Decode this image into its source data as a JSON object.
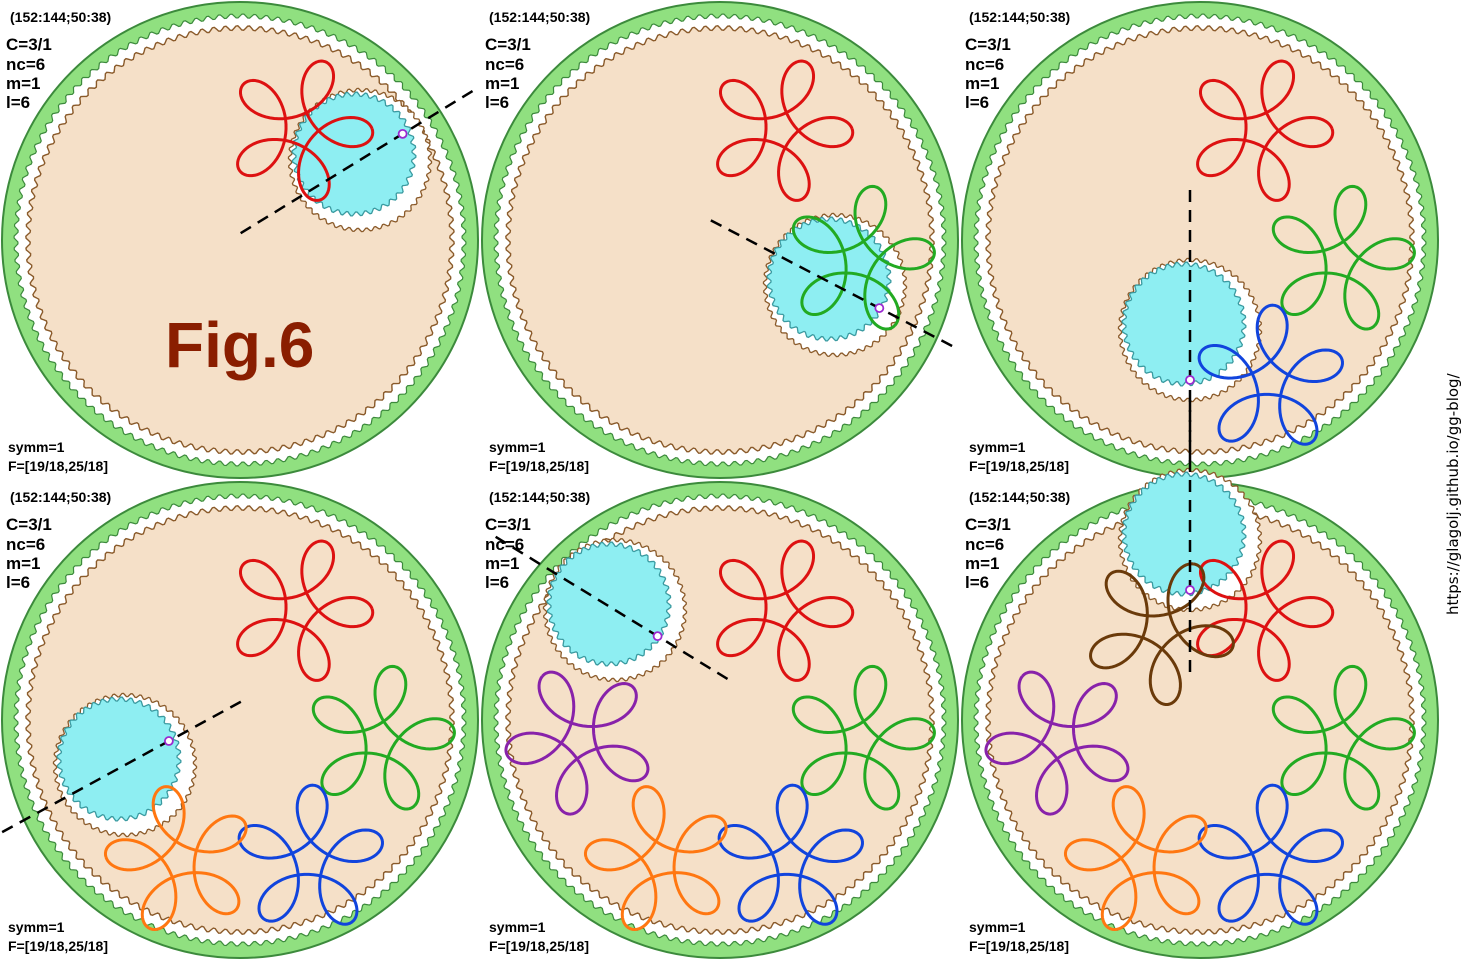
{
  "figure": {
    "title": "Fig.6",
    "url": "https://glagolj.github.io/gg-blog/"
  },
  "panel_text": {
    "header": "(152:144;50:38)",
    "params": [
      "C=3/1",
      "nc=6",
      "m=1",
      "l=6"
    ],
    "symm": "symm=1",
    "ratio": "F=[19/18,25/18]"
  },
  "colors": {
    "ring": "#90e080",
    "ring_edge": "#3c8a3c",
    "disc": "#f5e0c8",
    "gear_edge": "#8a5a2a",
    "small_gear": "#8eeef2",
    "small_gear_edge": "#3a9aa0",
    "fig_text": "#8a1e00"
  },
  "curve_colors": [
    "#dd1111",
    "#22aa22",
    "#1144dd",
    "#ff7711",
    "#8822aa",
    "#6a3a0a"
  ],
  "icons": {
    "pen": "pen-point-icon",
    "arm": "dashed-arm-line"
  },
  "panels": [
    {
      "id": "panel-1",
      "lobes": 1,
      "pen_segment": 0
    },
    {
      "id": "panel-2",
      "lobes": 2,
      "pen_segment": 1
    },
    {
      "id": "panel-3",
      "lobes": 3,
      "pen_segment": 2
    },
    {
      "id": "panel-4",
      "lobes": 4,
      "pen_segment": 3
    },
    {
      "id": "panel-5",
      "lobes": 5,
      "pen_segment": 4
    },
    {
      "id": "panel-6",
      "lobes": 6,
      "pen_segment": 5
    }
  ]
}
